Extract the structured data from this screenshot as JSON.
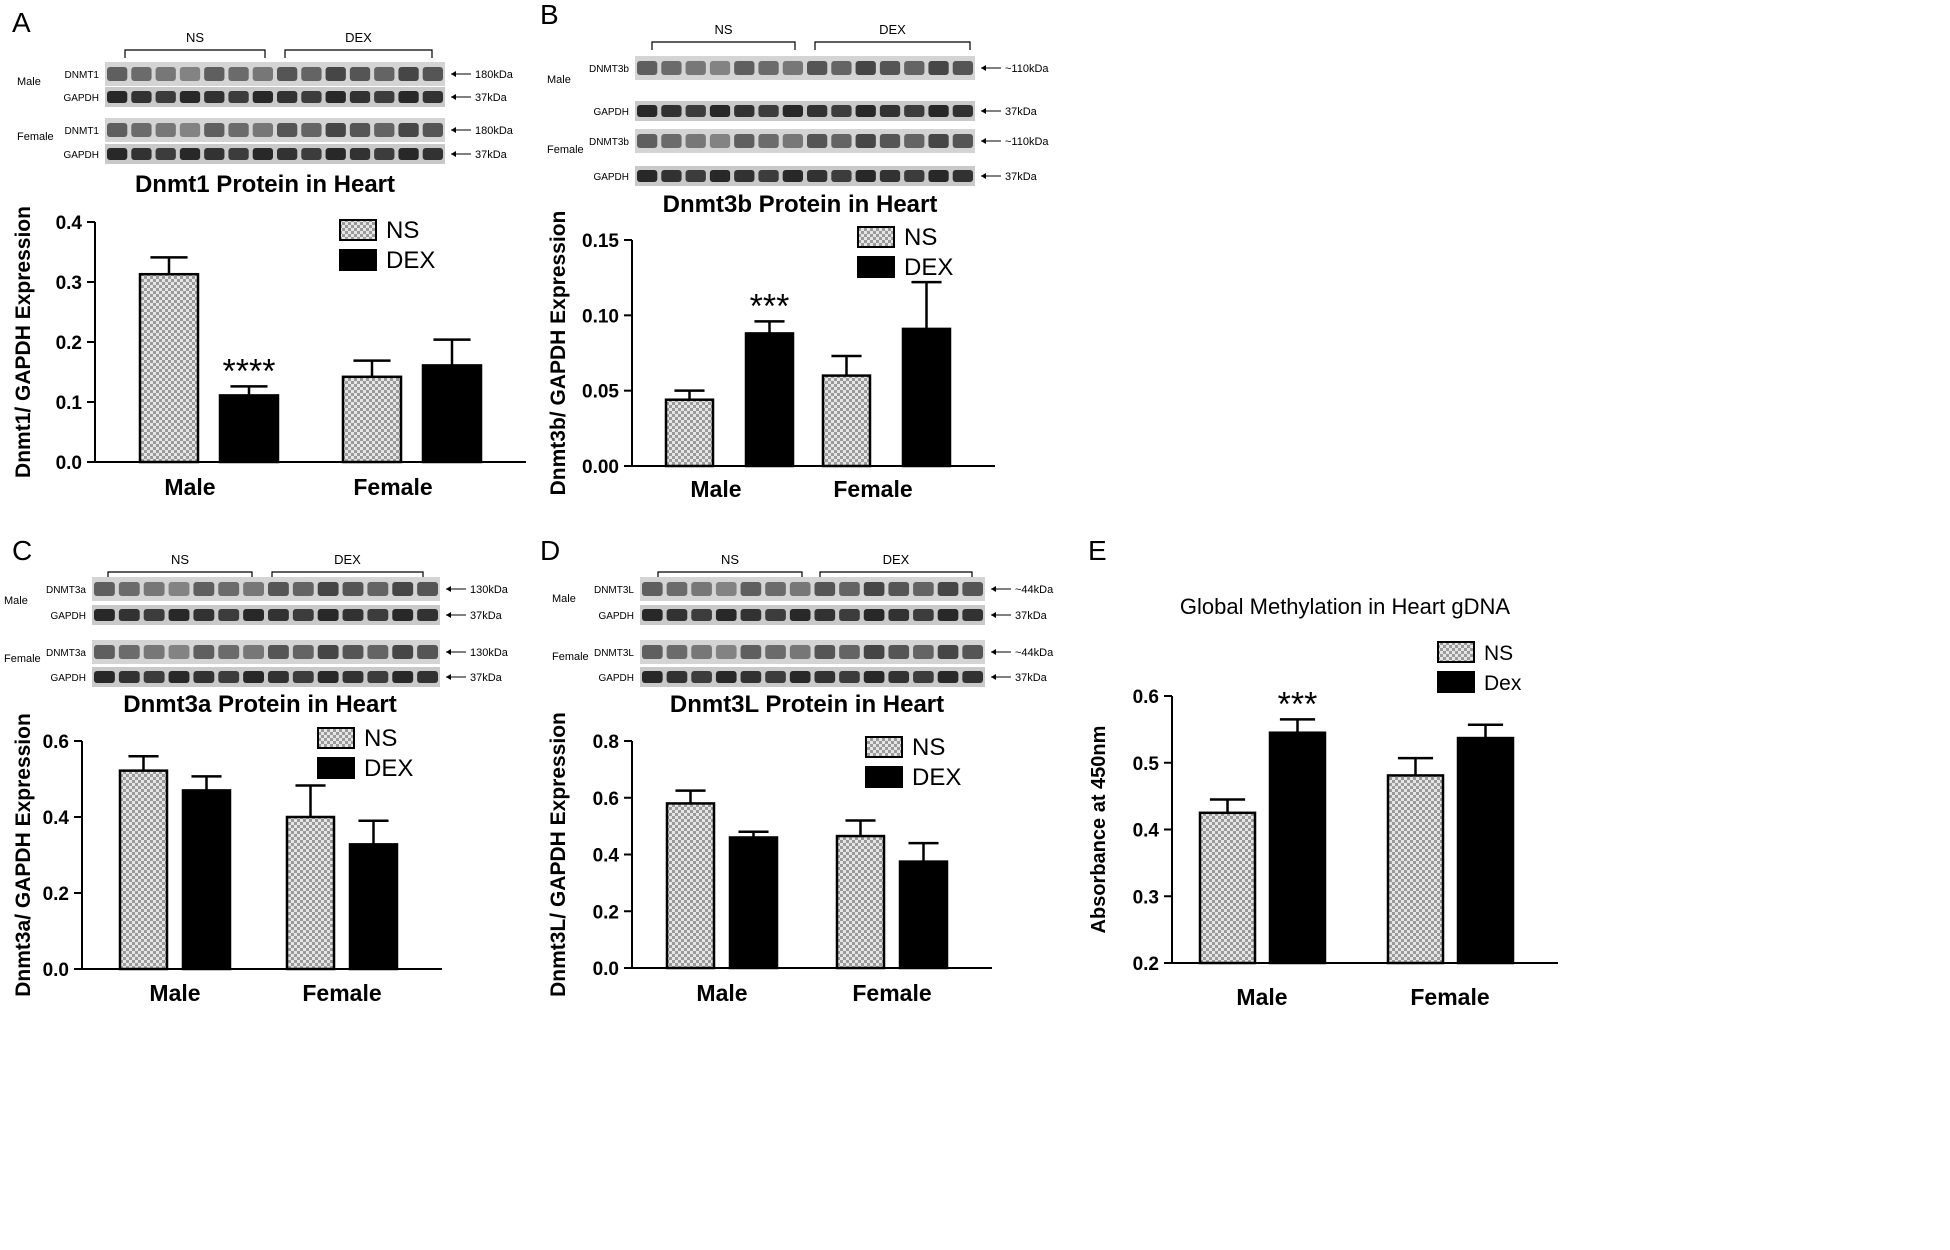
{
  "figure": {
    "colors": {
      "ns_fill": "#d9d9d9",
      "dex_fill": "#000000",
      "ink": "#000000"
    }
  },
  "chart_data": [
    {
      "panel": "A",
      "type": "bar",
      "title": "Dnmt1 Protein in Heart",
      "ylabel": "Dnmt1/ GAPDH Expression",
      "categories": [
        "Male",
        "Female"
      ],
      "series": [
        {
          "name": "NS",
          "values": [
            0.313,
            0.142
          ],
          "errors": [
            0.028,
            0.027
          ]
        },
        {
          "name": "DEX",
          "values": [
            0.111,
            0.161
          ],
          "errors": [
            0.015,
            0.043
          ]
        }
      ],
      "ylim": [
        0,
        0.4
      ],
      "yticks": [
        0.0,
        0.1,
        0.2,
        0.3,
        0.4
      ],
      "ytick_labels": [
        "0.0",
        "0.1",
        "0.2",
        "0.3",
        "0.4"
      ],
      "annotations": [
        {
          "category": 0,
          "series": 1,
          "text": "****"
        }
      ],
      "blot": {
        "groups": [
          "NS",
          "DEX"
        ],
        "sexes": [
          "Male",
          "Female"
        ],
        "rows": [
          "DNMT1",
          "GAPDH",
          "DNMT1",
          "GAPDH"
        ],
        "sizes": [
          "180kDa",
          "37kDa",
          "180kDa",
          "37kDa"
        ]
      }
    },
    {
      "panel": "B",
      "type": "bar",
      "title": "Dnmt3b Protein in Heart",
      "ylabel": "Dnmt3b/ GAPDH Expression",
      "categories": [
        "Male",
        "Female"
      ],
      "series": [
        {
          "name": "NS",
          "values": [
            0.044,
            0.06
          ],
          "errors": [
            0.006,
            0.013
          ]
        },
        {
          "name": "DEX",
          "values": [
            0.088,
            0.091
          ],
          "errors": [
            0.008,
            0.031
          ]
        }
      ],
      "ylim": [
        0,
        0.15
      ],
      "yticks": [
        0.0,
        0.05,
        0.1,
        0.15
      ],
      "ytick_labels": [
        "0.00",
        "0.05",
        "0.10",
        "0.15"
      ],
      "annotations": [
        {
          "category": 0,
          "series": 1,
          "text": "***"
        }
      ],
      "blot": {
        "groups": [
          "NS",
          "DEX"
        ],
        "sexes": [
          "Male",
          "Female"
        ],
        "rows": [
          "DNMT3b",
          "GAPDH",
          "DNMT3b",
          "GAPDH"
        ],
        "sizes": [
          "~110kDa",
          "37kDa",
          "~110kDa",
          "37kDa"
        ]
      }
    },
    {
      "panel": "C",
      "type": "bar",
      "title": "Dnmt3a Protein in Heart",
      "ylabel": "Dnmt3a/ GAPDH Expression",
      "categories": [
        "Male",
        "Female"
      ],
      "series": [
        {
          "name": "NS",
          "values": [
            0.522,
            0.4
          ],
          "errors": [
            0.038,
            0.083
          ]
        },
        {
          "name": "DEX",
          "values": [
            0.47,
            0.328
          ],
          "errors": [
            0.037,
            0.062
          ]
        }
      ],
      "ylim": [
        0,
        0.6
      ],
      "yticks": [
        0.0,
        0.2,
        0.4,
        0.6
      ],
      "ytick_labels": [
        "0.0",
        "0.2",
        "0.4",
        "0.6"
      ],
      "annotations": [],
      "blot": {
        "groups": [
          "NS",
          "DEX"
        ],
        "sexes": [
          "Male",
          "Female"
        ],
        "rows": [
          "DNMT3a",
          "GAPDH",
          "DNMT3a",
          "GAPDH"
        ],
        "sizes": [
          "130kDa",
          "37kDa",
          "130kDa",
          "37kDa"
        ]
      }
    },
    {
      "panel": "D",
      "type": "bar",
      "title": "Dnmt3L Protein in Heart",
      "ylabel": "Dnmt3L/ GAPDH Expression",
      "categories": [
        "Male",
        "Female"
      ],
      "series": [
        {
          "name": "NS",
          "values": [
            0.58,
            0.465
          ],
          "errors": [
            0.045,
            0.055
          ]
        },
        {
          "name": "DEX",
          "values": [
            0.46,
            0.375
          ],
          "errors": [
            0.02,
            0.065
          ]
        }
      ],
      "ylim": [
        0,
        0.8
      ],
      "yticks": [
        0.0,
        0.2,
        0.4,
        0.6,
        0.8
      ],
      "ytick_labels": [
        "0.0",
        "0.2",
        "0.4",
        "0.6",
        "0.8"
      ],
      "annotations": [],
      "blot": {
        "groups": [
          "NS",
          "DEX"
        ],
        "sexes": [
          "Male",
          "Female"
        ],
        "rows": [
          "DNMT3L",
          "GAPDH",
          "DNMT3L",
          "GAPDH"
        ],
        "sizes": [
          "~44kDa",
          "37kDa",
          "~44kDa",
          "37kDa"
        ]
      }
    },
    {
      "panel": "E",
      "type": "bar",
      "title": "Global Methylation in Heart gDNA",
      "ylabel": "Absorbance at 450nm",
      "categories": [
        "Male",
        "Female"
      ],
      "series": [
        {
          "name": "NS",
          "values": [
            0.425,
            0.481
          ],
          "errors": [
            0.02,
            0.026
          ]
        },
        {
          "name": "Dex",
          "values": [
            0.545,
            0.537
          ],
          "errors": [
            0.02,
            0.02
          ]
        }
      ],
      "ylim": [
        0.2,
        0.6
      ],
      "yticks": [
        0.2,
        0.3,
        0.4,
        0.5,
        0.6
      ],
      "ytick_labels": [
        "0.2",
        "0.3",
        "0.4",
        "0.5",
        "0.6"
      ],
      "annotations": [
        {
          "category": 0,
          "series": 1,
          "text": "***"
        }
      ]
    }
  ]
}
